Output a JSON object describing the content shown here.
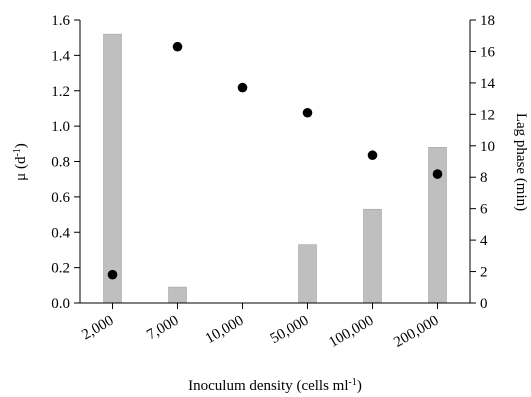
{
  "chart_data": {
    "type": "bar",
    "categories": [
      "2,000",
      "7,000",
      "10,000",
      "50,000",
      "100,000",
      "200,000"
    ],
    "series": [
      {
        "type": "bar",
        "axis": "left",
        "values": [
          1.52,
          0.09,
          0.0,
          0.33,
          0.53,
          0.88
        ]
      },
      {
        "type": "scatter",
        "axis": "right",
        "values": [
          1.8,
          16.3,
          13.7,
          12.1,
          9.4,
          8.2
        ]
      }
    ],
    "xlabel_text": "Inoculum density (cells ml",
    "xlabel_sup": "-1",
    "xlabel_close": ")",
    "ylabel_left_text": "μ (d",
    "ylabel_left_sup": "-1",
    "ylabel_left_close": ")",
    "ylabel_right": "Lag phase (min)",
    "ylim_left": [
      0,
      1.6
    ],
    "ylim_right": [
      0,
      18
    ],
    "yticks_left": [
      "0.0",
      "0.2",
      "0.4",
      "0.6",
      "0.8",
      "1.0",
      "1.2",
      "1.4",
      "1.6"
    ],
    "yticks_right": [
      "0",
      "2",
      "4",
      "6",
      "8",
      "10",
      "12",
      "14",
      "16",
      "18"
    ],
    "grid": false,
    "legend": "none",
    "colors": {
      "bar": "#bfbfbf",
      "dot": "#000000"
    }
  }
}
